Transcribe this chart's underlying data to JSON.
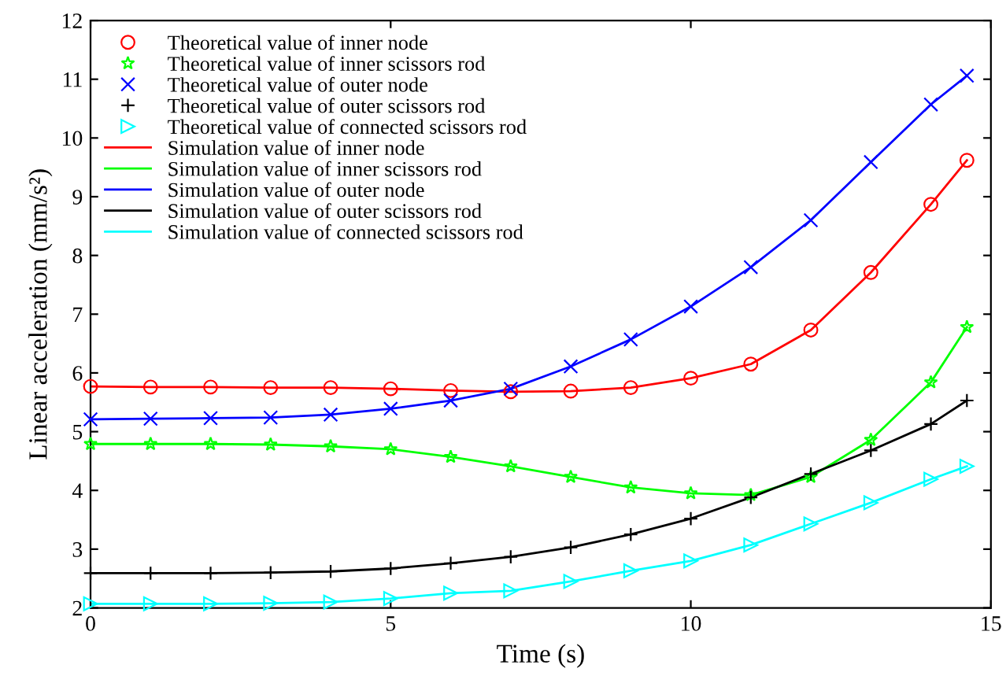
{
  "chart_data": {
    "type": "line",
    "xlabel": "Time (s)",
    "ylabel": "Linear acceleration (mm/s²)",
    "x": [
      0,
      1,
      2,
      3,
      4,
      5,
      6,
      7,
      8,
      9,
      10,
      11,
      12,
      13,
      14,
      14.6
    ],
    "xlim": [
      0,
      15
    ],
    "xticks": [
      0,
      5,
      10,
      15
    ],
    "ylim": [
      2,
      12
    ],
    "yticks": [
      2,
      3,
      4,
      5,
      6,
      7,
      8,
      9,
      10,
      11,
      12
    ],
    "grid": false,
    "legend": "top left",
    "series": [
      {
        "name": "Theoretical value of inner node",
        "type": "scatter",
        "marker": "circle",
        "color": "#ff0000",
        "values": [
          5.77,
          5.76,
          5.76,
          5.75,
          5.75,
          5.73,
          5.7,
          5.68,
          5.69,
          5.75,
          5.91,
          6.15,
          6.73,
          7.71,
          8.87,
          9.62
        ]
      },
      {
        "name": "Theoretical value of inner scissors rod",
        "type": "scatter",
        "marker": "star",
        "color": "#00ff00",
        "values": [
          4.79,
          4.79,
          4.79,
          4.78,
          4.75,
          4.7,
          4.57,
          4.41,
          4.23,
          4.05,
          3.95,
          3.92,
          4.23,
          4.86,
          5.84,
          6.78
        ]
      },
      {
        "name": "Theoretical value of outer node",
        "type": "scatter",
        "marker": "cross",
        "color": "#0000ff",
        "values": [
          5.21,
          5.22,
          5.23,
          5.24,
          5.29,
          5.39,
          5.53,
          5.73,
          6.11,
          6.57,
          7.13,
          7.8,
          8.6,
          9.59,
          10.57,
          11.06
        ]
      },
      {
        "name": "Theoretical value of outer scissors rod",
        "type": "scatter",
        "marker": "plus",
        "color": "#000000",
        "values": [
          2.59,
          2.59,
          2.59,
          2.6,
          2.62,
          2.67,
          2.76,
          2.87,
          3.03,
          3.25,
          3.52,
          3.88,
          4.28,
          4.68,
          5.13,
          5.53
        ]
      },
      {
        "name": "Theoretical value of connected scissors rod",
        "type": "scatter",
        "marker": "triangle",
        "color": "#00ffff",
        "values": [
          2.07,
          2.07,
          2.07,
          2.08,
          2.1,
          2.16,
          2.25,
          2.29,
          2.45,
          2.63,
          2.8,
          3.07,
          3.43,
          3.79,
          4.19,
          4.41
        ]
      },
      {
        "name": "Simulation value of inner node",
        "color": "#ff0000",
        "values": [
          5.77,
          5.76,
          5.76,
          5.75,
          5.75,
          5.73,
          5.7,
          5.68,
          5.69,
          5.75,
          5.91,
          6.15,
          6.73,
          7.71,
          8.87,
          9.62
        ]
      },
      {
        "name": "Simulation value of inner scissors rod",
        "color": "#00ff00",
        "values": [
          4.79,
          4.79,
          4.79,
          4.78,
          4.75,
          4.7,
          4.57,
          4.41,
          4.23,
          4.05,
          3.95,
          3.92,
          4.23,
          4.86,
          5.84,
          6.78
        ]
      },
      {
        "name": "Simulation value of outer node",
        "color": "#0000ff",
        "values": [
          5.21,
          5.22,
          5.23,
          5.24,
          5.29,
          5.39,
          5.53,
          5.73,
          6.11,
          6.57,
          7.13,
          7.8,
          8.6,
          9.59,
          10.57,
          11.06
        ]
      },
      {
        "name": "Simulation value of outer scissors rod",
        "color": "#000000",
        "values": [
          2.59,
          2.59,
          2.59,
          2.6,
          2.62,
          2.67,
          2.76,
          2.87,
          3.03,
          3.25,
          3.52,
          3.88,
          4.28,
          4.68,
          5.13,
          5.53
        ]
      },
      {
        "name": "Simulation value of connected scissors rod",
        "color": "#00ffff",
        "values": [
          2.07,
          2.07,
          2.07,
          2.08,
          2.1,
          2.16,
          2.25,
          2.29,
          2.45,
          2.63,
          2.8,
          3.07,
          3.43,
          3.79,
          4.19,
          4.41
        ]
      }
    ]
  }
}
